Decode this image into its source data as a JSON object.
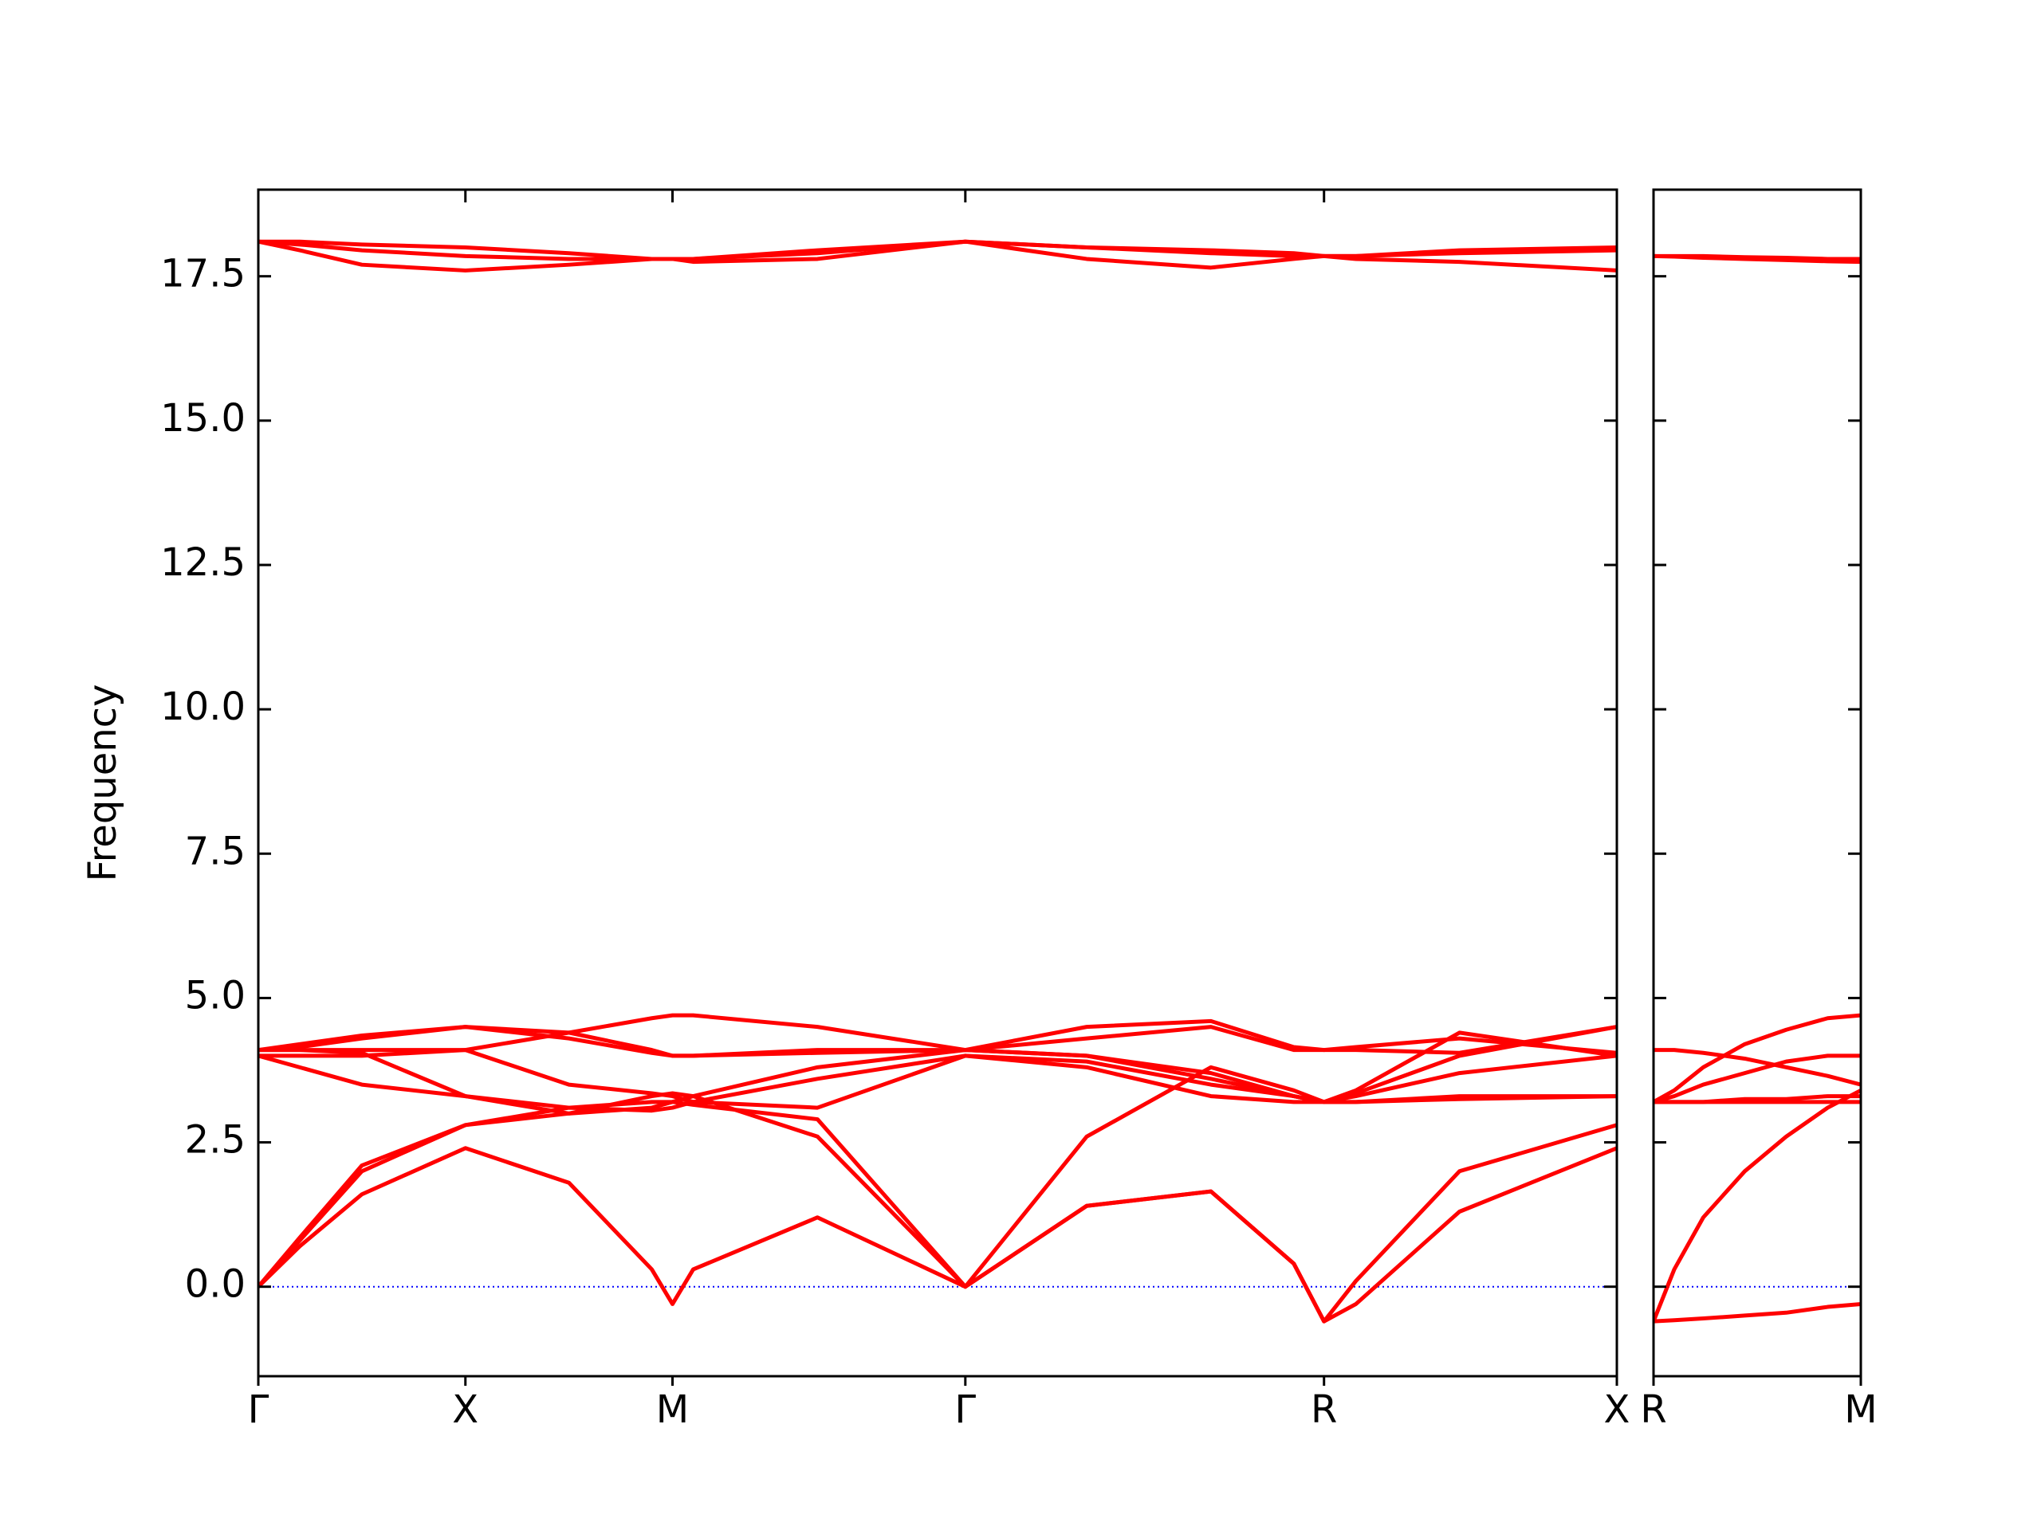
{
  "chart_data": [
    {
      "type": "line",
      "ylabel": "Frequency",
      "color": "#ff0000",
      "xlim": [
        0,
        3.28
      ],
      "ylim": [
        -1.55,
        19
      ],
      "xticks": [
        {
          "value": 0,
          "label": "Γ"
        },
        {
          "value": 0.5,
          "label": "X"
        },
        {
          "value": 1.0,
          "label": "M"
        },
        {
          "value": 1.707,
          "label": "Γ"
        },
        {
          "value": 2.573,
          "label": "R"
        },
        {
          "value": 3.28,
          "label": "X"
        }
      ],
      "yticks": [
        {
          "value": 0,
          "label": "0.0"
        },
        2.5,
        {
          "value": 5,
          "label": "5.0"
        },
        7.5,
        {
          "value": 10,
          "label": "10.0"
        },
        12.5,
        {
          "value": 15,
          "label": "15.0"
        },
        17.5
      ],
      "ytick_labels": true,
      "hline": 0,
      "hline_color": "#0000ff",
      "x": [
        0,
        0.1,
        0.25,
        0.5,
        0.75,
        0.95,
        1.0,
        1.05,
        1.35,
        1.707,
        2.0,
        2.3,
        2.5,
        2.573,
        2.65,
        2.9,
        3.28
      ],
      "series": [
        {
          "values": [
            0,
            0.7,
            1.6,
            2.4,
            1.8,
            0.3,
            -0.3,
            0.3,
            1.2,
            0,
            1.4,
            1.65,
            0.4,
            -0.6,
            -0.3,
            1.3,
            2.4
          ]
        },
        {
          "values": [
            0,
            0.8,
            2.0,
            2.8,
            3.0,
            3.3,
            3.35,
            3.3,
            2.6,
            0,
            1.4,
            1.65,
            0.4,
            -0.6,
            0.1,
            2.0,
            2.8
          ]
        },
        {
          "values": [
            0,
            0.85,
            2.1,
            2.8,
            3.1,
            3.2,
            3.2,
            3.15,
            2.9,
            0,
            2.6,
            3.8,
            3.4,
            3.2,
            3.2,
            3.3,
            3.3
          ]
        },
        {
          "values": [
            4.0,
            3.8,
            3.5,
            3.3,
            3.1,
            3.05,
            3.1,
            3.2,
            3.6,
            4.0,
            3.9,
            3.5,
            3.3,
            3.2,
            3.2,
            3.25,
            3.3
          ]
        },
        {
          "values": [
            4.0,
            4.0,
            4.0,
            4.1,
            3.5,
            3.35,
            3.3,
            3.2,
            3.1,
            4.0,
            3.8,
            3.3,
            3.2,
            3.2,
            3.3,
            3.7,
            4.0
          ]
        },
        {
          "values": [
            4.1,
            4.1,
            4.05,
            3.3,
            3.0,
            3.1,
            3.2,
            3.3,
            3.8,
            4.1,
            4.0,
            3.6,
            3.3,
            3.2,
            3.35,
            4.0,
            4.5
          ]
        },
        {
          "values": [
            4.1,
            4.15,
            4.3,
            4.5,
            4.3,
            4.05,
            4.0,
            4.0,
            4.05,
            4.1,
            4.0,
            3.7,
            3.3,
            3.2,
            3.4,
            4.4,
            4.0
          ]
        },
        {
          "values": [
            4.1,
            4.2,
            4.35,
            4.5,
            4.4,
            4.1,
            4.0,
            4.0,
            4.1,
            4.1,
            4.3,
            4.5,
            4.1,
            4.1,
            4.1,
            4.05,
            4.5
          ]
        },
        {
          "values": [
            4.1,
            4.1,
            4.1,
            4.1,
            4.4,
            4.65,
            4.7,
            4.7,
            4.5,
            4.1,
            4.5,
            4.6,
            4.15,
            4.1,
            4.15,
            4.3,
            4.05
          ]
        },
        {
          "values": [
            18.1,
            18.1,
            18.05,
            18.0,
            17.9,
            17.8,
            17.8,
            17.8,
            17.95,
            18.1,
            18.0,
            17.95,
            17.9,
            17.85,
            17.85,
            17.95,
            18.0
          ]
        },
        {
          "values": [
            18.1,
            18.05,
            17.95,
            17.85,
            17.8,
            17.8,
            17.8,
            17.8,
            17.9,
            18.1,
            18.0,
            17.9,
            17.85,
            17.85,
            17.85,
            17.9,
            17.95
          ]
        },
        {
          "values": [
            18.1,
            17.95,
            17.7,
            17.6,
            17.7,
            17.8,
            17.8,
            17.75,
            17.8,
            18.1,
            17.8,
            17.65,
            17.8,
            17.85,
            17.8,
            17.75,
            17.6
          ]
        }
      ]
    },
    {
      "type": "line",
      "color": "#ff0000",
      "xlim": [
        3.28,
        3.78
      ],
      "ylim": [
        -1.55,
        19
      ],
      "xticks": [
        {
          "value": 3.28,
          "label": "R"
        },
        {
          "value": 3.78,
          "label": "M"
        }
      ],
      "yticks": [
        0,
        2.5,
        5,
        7.5,
        10,
        12.5,
        15,
        17.5
      ],
      "ytick_labels": false,
      "hline": 0,
      "hline_color": "#0000ff",
      "x": [
        3.28,
        3.33,
        3.4,
        3.5,
        3.6,
        3.7,
        3.78
      ],
      "series": [
        {
          "values": [
            -0.6,
            -0.58,
            -0.55,
            -0.5,
            -0.45,
            -0.35,
            -0.3
          ]
        },
        {
          "values": [
            -0.6,
            0.3,
            1.2,
            2.0,
            2.6,
            3.1,
            3.4
          ]
        },
        {
          "values": [
            3.2,
            3.2,
            3.2,
            3.25,
            3.25,
            3.3,
            3.3
          ]
        },
        {
          "values": [
            3.2,
            3.2,
            3.2,
            3.2,
            3.2,
            3.2,
            3.2
          ]
        },
        {
          "values": [
            3.2,
            3.3,
            3.5,
            3.7,
            3.9,
            4.0,
            4.0
          ]
        },
        {
          "values": [
            3.2,
            3.4,
            3.8,
            4.2,
            4.45,
            4.65,
            4.7
          ]
        },
        {
          "values": [
            4.1,
            4.1,
            4.05,
            3.95,
            3.8,
            3.65,
            3.5
          ]
        },
        {
          "values": [
            17.85,
            17.85,
            17.85,
            17.83,
            17.82,
            17.8,
            17.8
          ]
        },
        {
          "values": [
            17.85,
            17.84,
            17.82,
            17.8,
            17.78,
            17.76,
            17.75
          ]
        }
      ]
    }
  ]
}
